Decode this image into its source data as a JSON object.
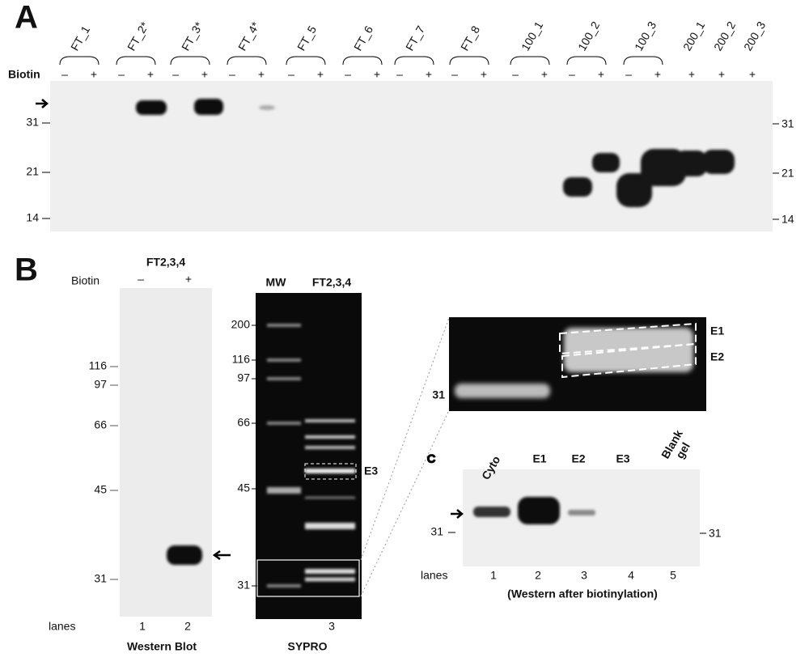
{
  "panel_a": {
    "label": "A",
    "lanes": [
      "FT_1",
      "FT_2*",
      "FT_3*",
      "FT_4*",
      "FT_5",
      "FT_6",
      "FT_7",
      "FT_8",
      "100_1",
      "100_2",
      "100_3",
      "200_1",
      "200_2",
      "200_3"
    ],
    "biotin_label": "Biotin",
    "biotin_signs": [
      "–",
      "+",
      "–",
      "+",
      "–",
      "+",
      "–",
      "+",
      "–",
      "+",
      "–",
      "+",
      "–",
      "+",
      "–",
      "+",
      "–",
      "+",
      "–",
      "+",
      "–",
      "+",
      "+",
      "+",
      "+"
    ],
    "markers_left": [
      "31",
      "21",
      "14"
    ],
    "markers_right": [
      "31",
      "21",
      "14"
    ]
  },
  "panel_b": {
    "label": "B",
    "western": {
      "sample": "FT2,3,4",
      "biotin_label": "Biotin",
      "biotin_signs": [
        "–",
        "+"
      ],
      "markers": [
        "116",
        "97",
        "66",
        "45",
        "31"
      ],
      "lanes_label": "lanes",
      "lane_numbers": [
        "1",
        "2"
      ],
      "caption": "Western Blot"
    },
    "sypro": {
      "headers": [
        "MW",
        "FT2,3,4"
      ],
      "markers": [
        "200",
        "116",
        "97",
        "66",
        "45",
        "31"
      ],
      "box_label": "E3",
      "lane_number": "3",
      "caption": "SYPRO"
    },
    "zoom": {
      "marker": "31",
      "box_labels": [
        "E1",
        "E2"
      ]
    }
  },
  "panel_c": {
    "label": "C",
    "lanes": [
      "Cyto",
      "E1",
      "E2",
      "E3"
    ],
    "blank_gel_lines": [
      "Blank",
      "gel"
    ],
    "marker_left": "31",
    "marker_right": "31",
    "lanes_label": "lanes",
    "lane_numbers": [
      "1",
      "2",
      "3",
      "4",
      "5"
    ],
    "caption": "(Western after biotinylation)"
  }
}
